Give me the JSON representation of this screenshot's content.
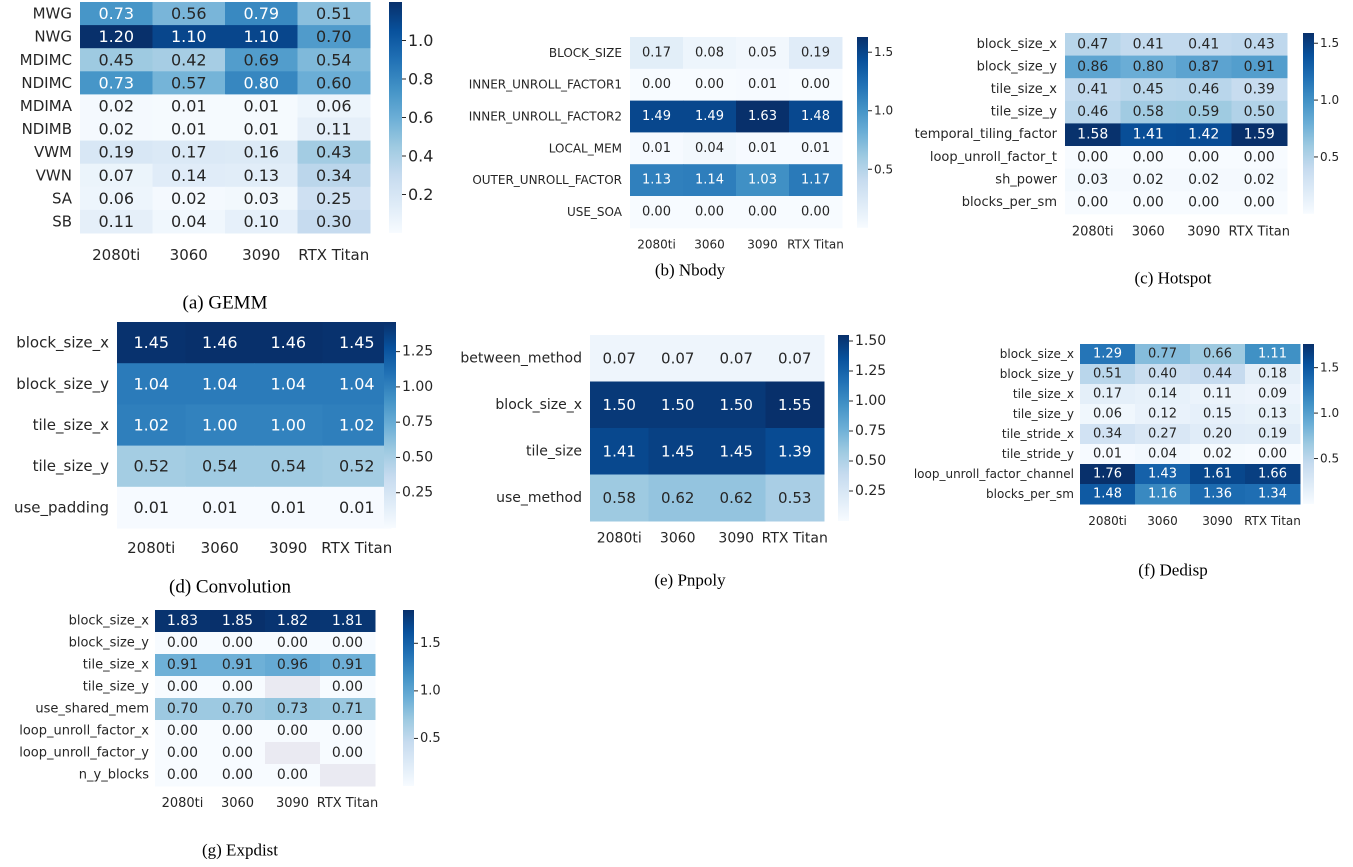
{
  "chart_data": [
    {
      "type": "heatmap",
      "caption": "(a) GEMM",
      "rows": [
        "MWG",
        "NWG",
        "MDIMC",
        "NDIMC",
        "MDIMA",
        "NDIMB",
        "VWM",
        "VWN",
        "SA",
        "SB"
      ],
      "columns": [
        "2080ti",
        "3060",
        "3090",
        "RTX Titan"
      ],
      "values": [
        [
          0.73,
          0.56,
          0.79,
          0.51
        ],
        [
          1.2,
          1.1,
          1.1,
          0.7
        ],
        [
          0.45,
          0.42,
          0.69,
          0.54
        ],
        [
          0.73,
          0.57,
          0.8,
          0.6
        ],
        [
          0.02,
          0.01,
          0.01,
          0.06
        ],
        [
          0.02,
          0.01,
          0.01,
          0.11
        ],
        [
          0.19,
          0.17,
          0.16,
          0.43
        ],
        [
          0.07,
          0.14,
          0.13,
          0.34
        ],
        [
          0.06,
          0.02,
          0.03,
          0.25
        ],
        [
          0.11,
          0.04,
          0.1,
          0.3
        ]
      ],
      "vmax": 1.2,
      "colorbar_ticks": [
        0.2,
        0.4,
        0.6,
        0.8,
        1.0
      ],
      "colorbar_tick_labels": [
        "0.2",
        "0.4",
        "0.6",
        "0.8",
        "1.0"
      ],
      "colormap": "Blues"
    },
    {
      "type": "heatmap",
      "caption": "(b) Nbody",
      "rows": [
        "BLOCK_SIZE",
        "INNER_UNROLL_FACTOR1",
        "INNER_UNROLL_FACTOR2",
        "LOCAL_MEM",
        "OUTER_UNROLL_FACTOR",
        "USE_SOA"
      ],
      "columns": [
        "2080ti",
        "3060",
        "3090",
        "RTX Titan"
      ],
      "values": [
        [
          0.17,
          0.08,
          0.05,
          0.19
        ],
        [
          0.0,
          0.0,
          0.01,
          0.0
        ],
        [
          1.49,
          1.49,
          1.63,
          1.48
        ],
        [
          0.01,
          0.04,
          0.01,
          0.01
        ],
        [
          1.13,
          1.14,
          1.03,
          1.17
        ],
        [
          0.0,
          0.0,
          0.0,
          0.0
        ]
      ],
      "vmax": 1.63,
      "colorbar_ticks": [
        0.5,
        1.0,
        1.5
      ],
      "colorbar_tick_labels": [
        "0.5",
        "1.0",
        "1.5"
      ],
      "colormap": "Blues"
    },
    {
      "type": "heatmap",
      "caption": "(c) Hotspot",
      "rows": [
        "block_size_x",
        "block_size_y",
        "tile_size_x",
        "tile_size_y",
        "temporal_tiling_factor",
        "loop_unroll_factor_t",
        "sh_power",
        "blocks_per_sm"
      ],
      "columns": [
        "2080ti",
        "3060",
        "3090",
        "RTX Titan"
      ],
      "values": [
        [
          0.47,
          0.41,
          0.41,
          0.43
        ],
        [
          0.86,
          0.8,
          0.87,
          0.91
        ],
        [
          0.41,
          0.45,
          0.46,
          0.39
        ],
        [
          0.46,
          0.58,
          0.59,
          0.5
        ],
        [
          1.58,
          1.41,
          1.42,
          1.59
        ],
        [
          0.0,
          0.0,
          0.0,
          0.0
        ],
        [
          0.03,
          0.02,
          0.02,
          0.02
        ],
        [
          0.0,
          0.0,
          0.0,
          0.0
        ]
      ],
      "vmax": 1.59,
      "colorbar_ticks": [
        0.5,
        1.0,
        1.5
      ],
      "colorbar_tick_labels": [
        "0.5",
        "1.0",
        "1.5"
      ],
      "colormap": "Blues"
    },
    {
      "type": "heatmap",
      "caption": "(d) Convolution",
      "rows": [
        "block_size_x",
        "block_size_y",
        "tile_size_x",
        "tile_size_y",
        "use_padding"
      ],
      "columns": [
        "2080ti",
        "3060",
        "3090",
        "RTX Titan"
      ],
      "values": [
        [
          1.45,
          1.46,
          1.46,
          1.45
        ],
        [
          1.04,
          1.04,
          1.04,
          1.04
        ],
        [
          1.02,
          1.0,
          1.0,
          1.02
        ],
        [
          0.52,
          0.54,
          0.54,
          0.52
        ],
        [
          0.01,
          0.01,
          0.01,
          0.01
        ]
      ],
      "vmax": 1.46,
      "colorbar_ticks": [
        0.25,
        0.5,
        0.75,
        1.0,
        1.25
      ],
      "colorbar_tick_labels": [
        "0.25",
        "0.50",
        "0.75",
        "1.00",
        "1.25"
      ],
      "colormap": "Blues"
    },
    {
      "type": "heatmap",
      "caption": "(e) Pnpoly",
      "rows": [
        "between_method",
        "block_size_x",
        "tile_size",
        "use_method"
      ],
      "columns": [
        "2080ti",
        "3060",
        "3090",
        "RTX Titan"
      ],
      "values": [
        [
          0.07,
          0.07,
          0.07,
          0.07
        ],
        [
          1.5,
          1.5,
          1.5,
          1.55
        ],
        [
          1.41,
          1.45,
          1.45,
          1.39
        ],
        [
          0.58,
          0.62,
          0.62,
          0.53
        ]
      ],
      "vmax": 1.55,
      "colorbar_ticks": [
        0.25,
        0.5,
        0.75,
        1.0,
        1.25,
        1.5
      ],
      "colorbar_tick_labels": [
        "0.25",
        "0.50",
        "0.75",
        "1.00",
        "1.25",
        "1.50"
      ],
      "colormap": "Blues"
    },
    {
      "type": "heatmap",
      "caption": "(f) Dedisp",
      "rows": [
        "block_size_x",
        "block_size_y",
        "tile_size_x",
        "tile_size_y",
        "tile_stride_x",
        "tile_stride_y",
        "loop_unroll_factor_channel",
        "blocks_per_sm"
      ],
      "columns": [
        "2080ti",
        "3060",
        "3090",
        "RTX Titan"
      ],
      "values": [
        [
          1.29,
          0.77,
          0.66,
          1.11
        ],
        [
          0.51,
          0.4,
          0.44,
          0.18
        ],
        [
          0.17,
          0.14,
          0.11,
          0.09
        ],
        [
          0.06,
          0.12,
          0.15,
          0.13
        ],
        [
          0.34,
          0.27,
          0.2,
          0.19
        ],
        [
          0.01,
          0.04,
          0.02,
          0.0
        ],
        [
          1.76,
          1.43,
          1.61,
          1.66
        ],
        [
          1.48,
          1.16,
          1.36,
          1.34
        ]
      ],
      "vmax": 1.76,
      "colorbar_ticks": [
        0.5,
        1.0,
        1.5
      ],
      "colorbar_tick_labels": [
        "0.5",
        "1.0",
        "1.5"
      ],
      "colormap": "Blues"
    },
    {
      "type": "heatmap",
      "caption": "(g) Expdist",
      "rows": [
        "block_size_x",
        "block_size_y",
        "tile_size_x",
        "tile_size_y",
        "use_shared_mem",
        "loop_unroll_factor_x",
        "loop_unroll_factor_y",
        "n_y_blocks"
      ],
      "columns": [
        "2080ti",
        "3060",
        "3090",
        "RTX Titan"
      ],
      "values": [
        [
          1.83,
          1.85,
          1.82,
          1.81
        ],
        [
          0.0,
          0.0,
          0.0,
          0.0
        ],
        [
          0.91,
          0.91,
          0.96,
          0.91
        ],
        [
          0.0,
          0.0,
          null,
          0.0
        ],
        [
          0.7,
          0.7,
          0.73,
          0.71
        ],
        [
          0.0,
          0.0,
          0.0,
          0.0
        ],
        [
          0.0,
          0.0,
          null,
          0.0
        ],
        [
          0.0,
          0.0,
          0.0,
          null
        ]
      ],
      "vmax": 1.85,
      "colorbar_ticks": [
        0.5,
        1.0,
        1.5
      ],
      "colorbar_tick_labels": [
        "0.5",
        "1.0",
        "1.5"
      ],
      "colormap": "Blues",
      "missing_color": "#eaeaf2"
    }
  ]
}
